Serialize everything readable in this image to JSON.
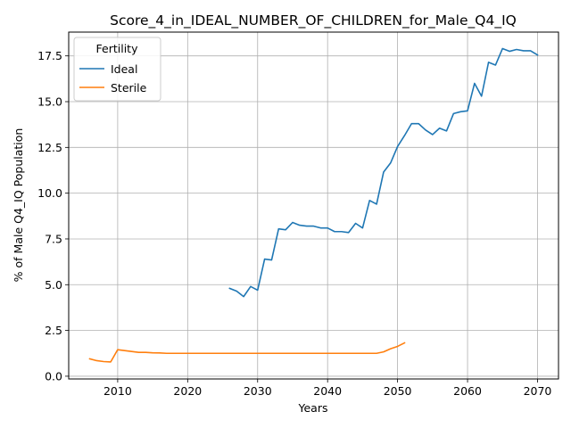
{
  "chart_data": {
    "type": "line",
    "title": "Score_4_in_IDEAL_NUMBER_OF_CHILDREN_for_Male_Q4_IQ",
    "xlabel": "Years",
    "ylabel": "% of Male Q4_IQ Population",
    "xlim": [
      2003,
      2073
    ],
    "ylim": [
      -0.15,
      18.8
    ],
    "xticks": [
      2010,
      2020,
      2030,
      2040,
      2050,
      2060,
      2070
    ],
    "yticks": [
      0.0,
      2.5,
      5.0,
      7.5,
      10.0,
      12.5,
      15.0,
      17.5
    ],
    "xtick_labels": [
      "2010",
      "2020",
      "2030",
      "2040",
      "2050",
      "2060",
      "2070"
    ],
    "ytick_labels": [
      "0.0",
      "2.5",
      "5.0",
      "7.5",
      "10.0",
      "12.5",
      "15.0",
      "17.5"
    ],
    "grid": true,
    "legend": {
      "title": "Fertility",
      "placement": "top-left"
    },
    "series": [
      {
        "name": "Ideal",
        "color": "#1f77b4",
        "x": [
          2026,
          2027,
          2028,
          2029,
          2030,
          2031,
          2032,
          2033,
          2034,
          2035,
          2036,
          2037,
          2038,
          2039,
          2040,
          2041,
          2042,
          2043,
          2044,
          2045,
          2046,
          2047,
          2048,
          2049,
          2050,
          2051,
          2052,
          2053,
          2054,
          2055,
          2056,
          2057,
          2058,
          2059,
          2060,
          2061,
          2062,
          2063,
          2064,
          2065,
          2066,
          2067,
          2068,
          2069,
          2070
        ],
        "y": [
          4.8,
          4.65,
          4.35,
          4.9,
          4.7,
          6.4,
          6.35,
          8.05,
          8.0,
          8.4,
          8.25,
          8.2,
          8.2,
          8.1,
          8.1,
          7.9,
          7.9,
          7.85,
          8.35,
          8.1,
          9.6,
          9.4,
          11.15,
          11.65,
          12.55,
          13.15,
          13.8,
          13.8,
          13.45,
          13.2,
          13.55,
          13.4,
          14.35,
          14.45,
          14.5,
          16.0,
          15.3,
          17.15,
          17.0,
          17.9,
          17.75,
          17.85,
          17.78,
          17.78,
          17.55
        ]
      },
      {
        "name": "Sterile",
        "color": "#ff7f0e",
        "x": [
          2006,
          2007,
          2008,
          2009,
          2010,
          2011,
          2012,
          2013,
          2014,
          2015,
          2016,
          2017,
          2018,
          2019,
          2020,
          2021,
          2022,
          2023,
          2024,
          2025,
          2026,
          2027,
          2028,
          2029,
          2030,
          2031,
          2032,
          2033,
          2034,
          2035,
          2036,
          2037,
          2038,
          2039,
          2040,
          2041,
          2042,
          2043,
          2044,
          2045,
          2046,
          2047,
          2048,
          2049,
          2050,
          2051
        ],
        "y": [
          0.95,
          0.85,
          0.8,
          0.78,
          1.45,
          1.4,
          1.35,
          1.3,
          1.3,
          1.28,
          1.27,
          1.25,
          1.25,
          1.25,
          1.25,
          1.25,
          1.25,
          1.25,
          1.25,
          1.25,
          1.25,
          1.25,
          1.25,
          1.25,
          1.25,
          1.25,
          1.25,
          1.25,
          1.25,
          1.25,
          1.25,
          1.25,
          1.25,
          1.25,
          1.25,
          1.25,
          1.25,
          1.25,
          1.25,
          1.25,
          1.25,
          1.25,
          1.33,
          1.5,
          1.63,
          1.82
        ]
      }
    ]
  }
}
